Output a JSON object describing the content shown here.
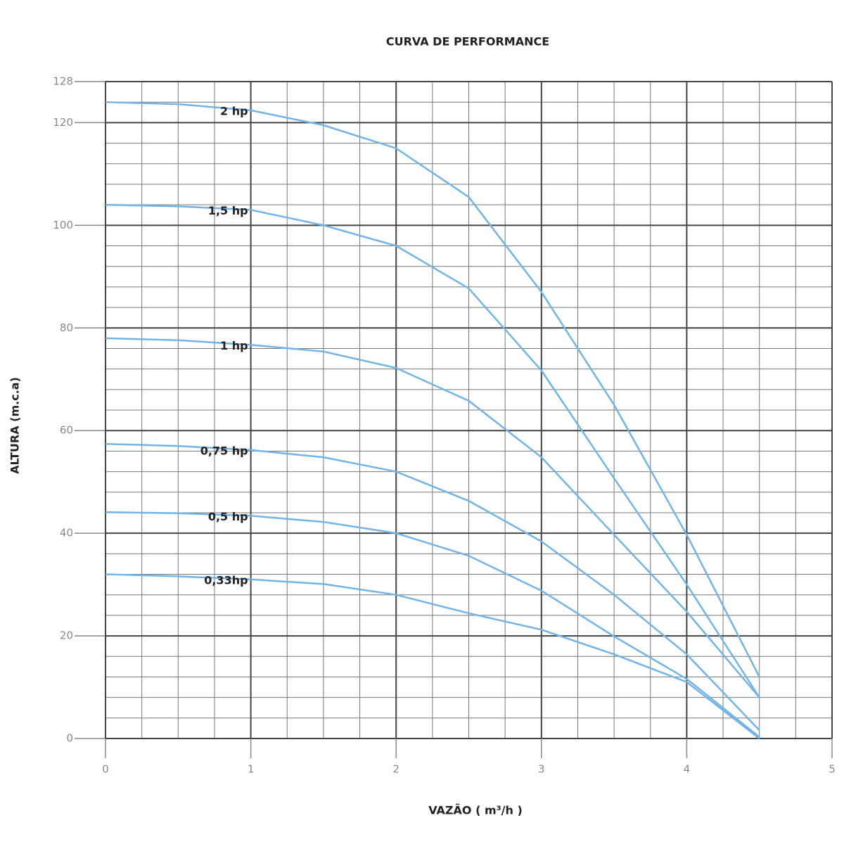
{
  "chart_data": {
    "type": "line",
    "title": "CURVA DE PERFORMANCE",
    "x_label": "VAZÃO ( m³/h )",
    "y_label": "ALTURA (m.c.a)",
    "x": [
      0,
      0.5,
      1,
      1.5,
      2,
      2.5,
      3,
      3.5,
      4,
      4.5
    ],
    "series": [
      {
        "name": "2 hp",
        "color": "#72b4e6",
        "values": [
          124,
          123.6,
          122.4,
          119.5,
          115,
          105.5,
          87,
          65,
          39.7,
          12
        ]
      },
      {
        "name": "1,5 hp",
        "color": "#72b4e6",
        "values": [
          104,
          103.7,
          103,
          100,
          96,
          87.7,
          71.7,
          50.7,
          30,
          8
        ]
      },
      {
        "name": "1 hp",
        "color": "#72b4e6",
        "values": [
          78,
          77.6,
          76.7,
          75.4,
          72.2,
          65.8,
          54.8,
          39.7,
          24.7,
          8
        ]
      },
      {
        "name": "0,75 hp",
        "color": "#72b4e6",
        "values": [
          57.4,
          57,
          56.2,
          54.8,
          52,
          46.3,
          38.4,
          28,
          16.4,
          1.6
        ]
      },
      {
        "name": "0,5 hp",
        "color": "#72b4e6",
        "values": [
          44.1,
          43.9,
          43.4,
          42.2,
          40,
          35.6,
          28.8,
          19.9,
          11.6,
          0.3
        ]
      },
      {
        "name": "0,33hp",
        "color": "#72b4e6",
        "values": [
          32,
          31.6,
          31,
          30.1,
          28,
          24.4,
          21.2,
          16.4,
          11,
          0
        ]
      }
    ],
    "xlim": [
      0,
      5
    ],
    "xticks": [
      0,
      1,
      2,
      3,
      4,
      5
    ],
    "ylim": [
      0,
      128
    ],
    "yticks": [
      0,
      20,
      40,
      60,
      80,
      100,
      120,
      128
    ],
    "grid": true
  }
}
